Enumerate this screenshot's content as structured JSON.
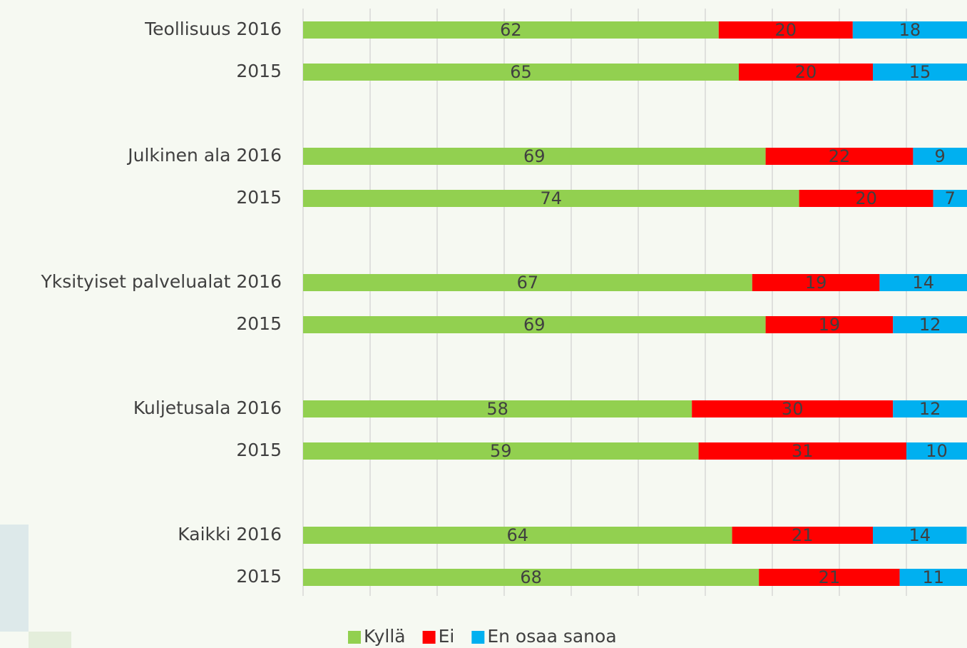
{
  "chart_data": {
    "type": "stacked_bar_horizontal",
    "categories": [
      "Teollisuus 2016",
      "2015",
      "Julkinen ala 2016",
      "2015",
      "Yksityiset palvelualat 2016",
      "2015",
      "Kuljetusala 2016",
      "2015",
      "Kaikki 2016",
      "2015"
    ],
    "series": [
      {
        "name": "Kyllä",
        "color": "#92d050",
        "values": [
          62,
          65,
          69,
          74,
          67,
          69,
          58,
          59,
          64,
          68
        ]
      },
      {
        "name": "Ei",
        "color": "#ff0000",
        "values": [
          20,
          20,
          22,
          20,
          19,
          19,
          30,
          31,
          21,
          21
        ]
      },
      {
        "name": "En osaa sanoa",
        "color": "#00b0f0",
        "values": [
          18,
          15,
          9,
          7,
          14,
          12,
          12,
          10,
          14,
          11
        ]
      }
    ],
    "xlim": [
      0,
      100
    ],
    "xticks": [
      0,
      10,
      20,
      30,
      40,
      50,
      60,
      70,
      80,
      90,
      100
    ],
    "grid": true,
    "legend": "bottom"
  }
}
